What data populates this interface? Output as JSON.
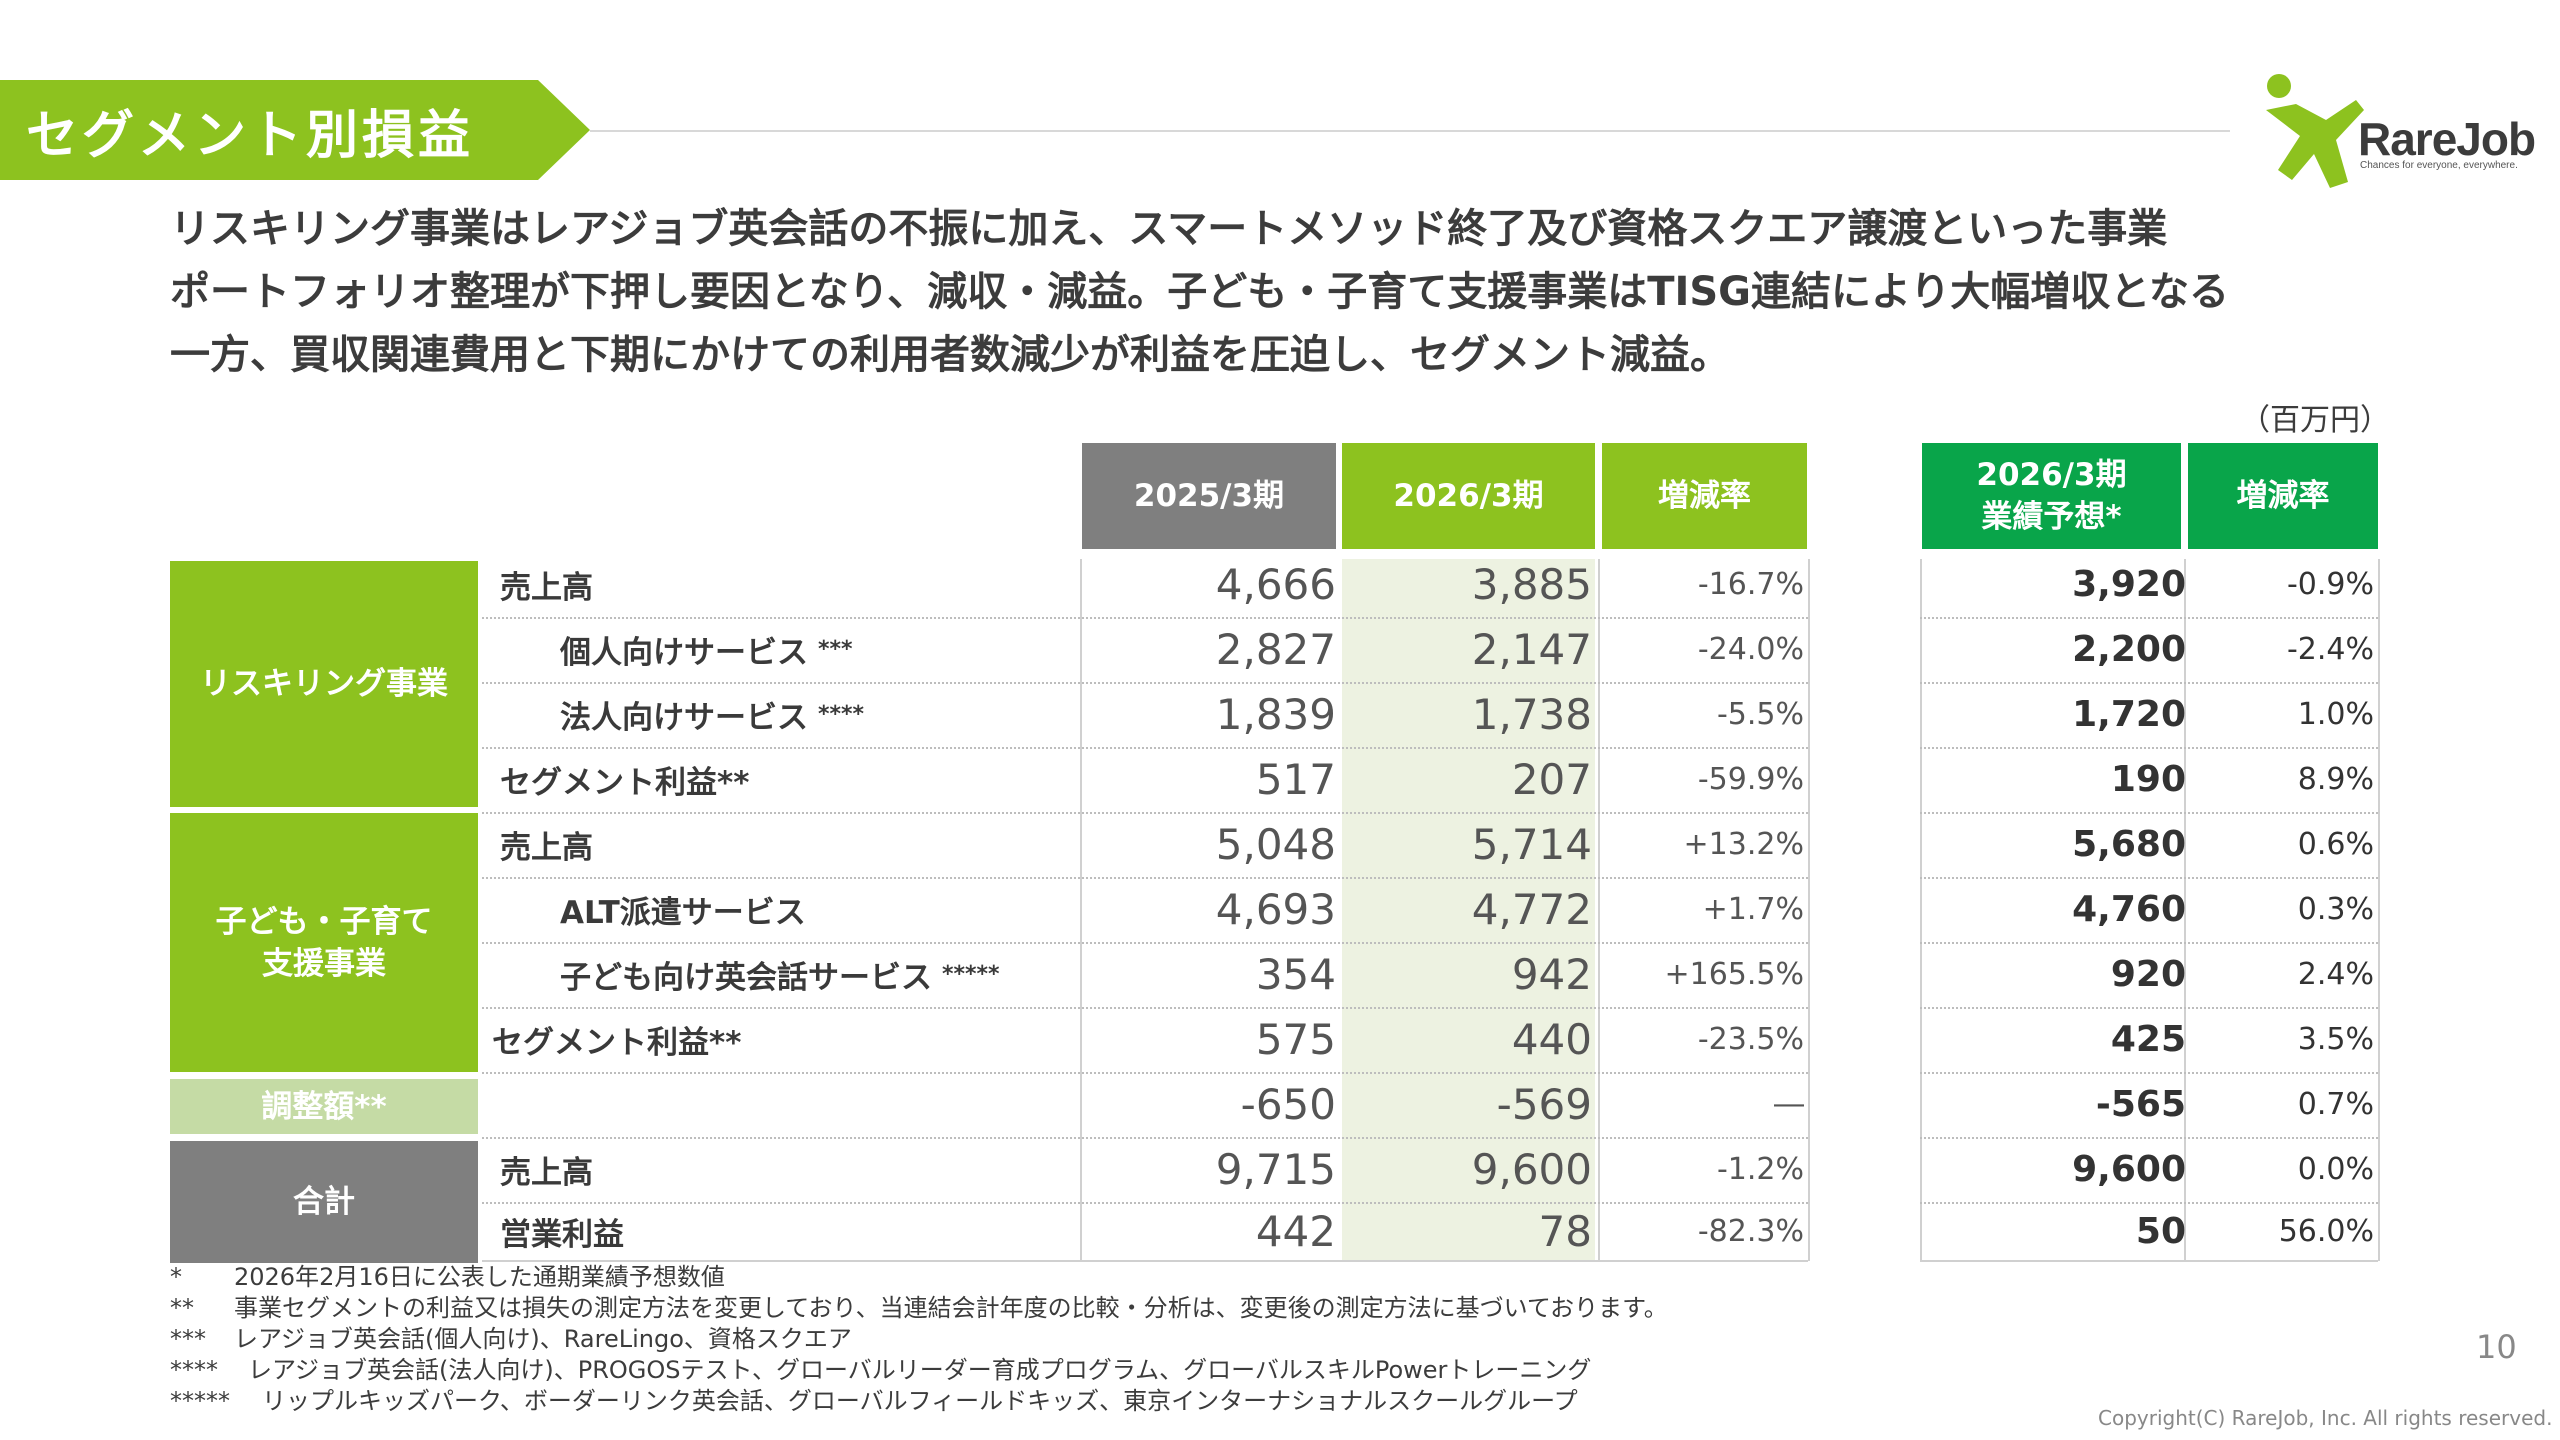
{
  "header": {
    "title": "セグメント別損益"
  },
  "logo": {
    "name": "RareJob",
    "tagline": "Chances for everyone, everywhere."
  },
  "lead": {
    "line1": "リスキリング事業はレアジョブ英会話の不振に加え、スマートメソッド終了及び資格スクエア譲渡といった事業",
    "line2": "ポートフォリオ整理が下押し要因となり、減収・減益。子ども・子育て支援事業はTISG連結により大幅増収となる",
    "line3": "一方、買収関連費用と下期にかけての利用者数減少が利益を圧迫し、セグメント減益。"
  },
  "unit": "（百万円）",
  "columns": {
    "fy2025": "2025/3期",
    "fy2026": "2026/3期",
    "change": "増減率",
    "forecast_line1": "2026/3期",
    "forecast_line2": "業績予想*",
    "forecast_change": "増減率"
  },
  "categories": {
    "reskilling": "リスキリング事業",
    "kids_line1": "子ども・子育て",
    "kids_line2": "支援事業",
    "adjust": "調整額**",
    "total": "合計"
  },
  "rows": [
    {
      "label": "売上高",
      "note": "",
      "fy2025": "4,666",
      "fy2026": "3,885",
      "change": "-16.7%",
      "forecast": "3,920",
      "forecast_change": "-0.9%"
    },
    {
      "label": "個人向けサービス",
      "note": "***",
      "fy2025": "2,827",
      "fy2026": "2,147",
      "change": "-24.0%",
      "forecast": "2,200",
      "forecast_change": "-2.4%"
    },
    {
      "label": "法人向けサービス",
      "note": "****",
      "fy2025": "1,839",
      "fy2026": "1,738",
      "change": "-5.5%",
      "forecast": "1,720",
      "forecast_change": "1.0%"
    },
    {
      "label": "セグメント利益**",
      "note": "",
      "fy2025": "517",
      "fy2026": "207",
      "change": "-59.9%",
      "forecast": "190",
      "forecast_change": "8.9%"
    },
    {
      "label": "売上高",
      "note": "",
      "fy2025": "5,048",
      "fy2026": "5,714",
      "change": "+13.2%",
      "forecast": "5,680",
      "forecast_change": "0.6%"
    },
    {
      "label": "ALT派遣サービス",
      "note": "",
      "fy2025": "4,693",
      "fy2026": "4,772",
      "change": "+1.7%",
      "forecast": "4,760",
      "forecast_change": "0.3%"
    },
    {
      "label": "子ども向け英会話サービス",
      "note": "*****",
      "fy2025": "354",
      "fy2026": "942",
      "change": "+165.5%",
      "forecast": "920",
      "forecast_change": "2.4%"
    },
    {
      "label": "セグメント利益**",
      "note": "",
      "fy2025": "575",
      "fy2026": "440",
      "change": "-23.5%",
      "forecast": "425",
      "forecast_change": "3.5%"
    },
    {
      "label": "",
      "note": "",
      "fy2025": "-650",
      "fy2026": "-569",
      "change": "―",
      "forecast": "-565",
      "forecast_change": "0.7%"
    },
    {
      "label": "売上高",
      "note": "",
      "fy2025": "9,715",
      "fy2026": "9,600",
      "change": "-1.2%",
      "forecast": "9,600",
      "forecast_change": "0.0%"
    },
    {
      "label": "営業利益",
      "note": "",
      "fy2025": "442",
      "fy2026": "78",
      "change": "-82.3%",
      "forecast": "50",
      "forecast_change": "56.0%"
    }
  ],
  "notes": [
    {
      "mark": "*",
      "text": "2026年2月16日に公表した通期業績予想数値"
    },
    {
      "mark": "**",
      "text": "事業セグメントの利益又は損失の測定方法を変更しており、当連結会計年度の比較・分析は、変更後の測定方法に基づいております。"
    },
    {
      "mark": "***",
      "text": "レアジョブ英会話(個人向け)、RareLingo、資格スクエア"
    },
    {
      "mark": "****",
      "text": "レアジョブ英会話(法人向け)、PROGOSテスト、グローバルリーダー育成プログラム、グローバルスキルPowerトレーニング"
    },
    {
      "mark": "*****",
      "text": "リップルキッズパーク、ボーダーリンク英会話、グローバルフィールドキッズ、東京インターナショナルスクールグループ"
    }
  ],
  "page_number": "10",
  "copyright": "Copyright(C) RareJob, Inc. All rights reserved.",
  "colors": {
    "accent_green": "#8dc21f",
    "forecast_green": "#09a54a",
    "header_gray": "#7f7f7f",
    "adjust_green": "#c5dba5",
    "highlight_col": "#edf2e1"
  }
}
